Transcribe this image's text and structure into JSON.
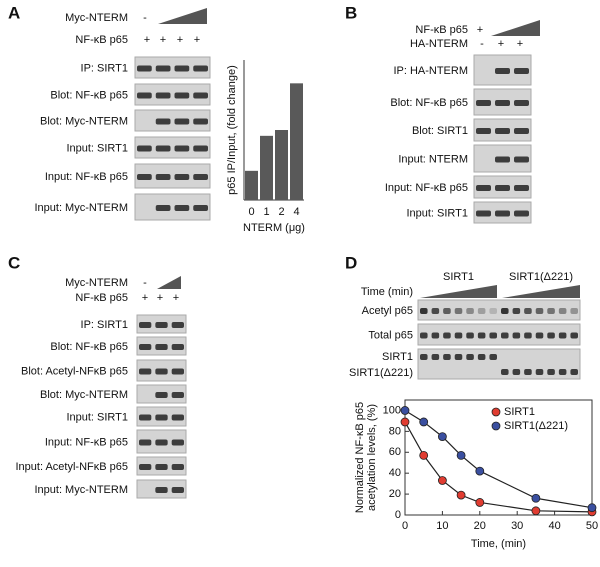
{
  "panels": [
    {
      "letter": "A",
      "rows": [
        {
          "label": "Myc-NTERM",
          "signs": [
            "-"
          ]
        },
        {
          "label": "NF-κB p65",
          "signs": [
            "+",
            "+",
            "+",
            "+"
          ]
        }
      ],
      "blots": [
        "IP: SIRT1",
        "Blot: NF-κB p65",
        "Blot: Myc-NTERM",
        "Input: SIRT1",
        "Input: NF-κB p65",
        "Input: Myc-NTERM"
      ]
    },
    {
      "letter": "B",
      "rows": [
        {
          "label": "NF-κB p65",
          "signs": [
            "+"
          ]
        },
        {
          "label": "HA-NTERM",
          "signs": [
            "-",
            "+",
            "+"
          ]
        }
      ],
      "blots": [
        "IP: HA-NTERM",
        "Blot: NF-κB p65",
        "Blot: SIRT1",
        "Input: NTERM",
        "Input: NF-κB p65",
        "Input: SIRT1"
      ]
    },
    {
      "letter": "C",
      "rows": [
        {
          "label": "Myc-NTERM",
          "signs": [
            "-"
          ]
        },
        {
          "label": "NF-κB p65",
          "signs": [
            "+",
            "+",
            "+"
          ]
        }
      ],
      "blots": [
        "IP: SIRT1",
        "Blot: NF-κB p65",
        "Blot: Acetyl-NFκB p65",
        "Blot: Myc-NTERM",
        "Input: SIRT1",
        "Input: NF-κB p65",
        "Input: Acetyl-NFκB p65",
        "Input: Myc-NTERM"
      ]
    },
    {
      "letter": "D",
      "groups": [
        "SIRT1",
        "SIRT1(Δ221)"
      ],
      "rows": [
        {
          "label": "Time (min)"
        }
      ],
      "blots": [
        "Acetyl p65",
        "Total p65",
        "SIRT1",
        "SIRT1(Δ221)"
      ]
    }
  ],
  "chart_data": [
    {
      "type": "bar",
      "ylabel": "p65 IP/Input, (fold change)",
      "xlabel": "NTERM (μg)",
      "categories": [
        "0",
        "1",
        "2",
        "4"
      ],
      "values": [
        1,
        2.2,
        2.4,
        4
      ],
      "color": "#595959",
      "ylim": [
        0,
        4.8
      ]
    },
    {
      "type": "line",
      "xlabel": "Time, (min)",
      "ylabel": [
        "Normalized NF-κB p65",
        "acetylation levels, (%)"
      ],
      "x": [
        0,
        5,
        10,
        15,
        20,
        35,
        50
      ],
      "series": [
        {
          "name": "SIRT1",
          "color": "#e03c31",
          "values": [
            89,
            57,
            33,
            19,
            12,
            4,
            3
          ]
        },
        {
          "name": "SIRT1(Δ221)",
          "color": "#3a4fa0",
          "values": [
            100,
            89,
            75,
            57,
            42,
            16,
            7
          ]
        }
      ],
      "xlim": [
        0,
        50
      ],
      "xticks": [
        0,
        10,
        20,
        30,
        40,
        50
      ],
      "ylim": [
        0,
        110
      ],
      "yticks": [
        0,
        20,
        40,
        60,
        80,
        100
      ],
      "legend": "upper right"
    }
  ]
}
